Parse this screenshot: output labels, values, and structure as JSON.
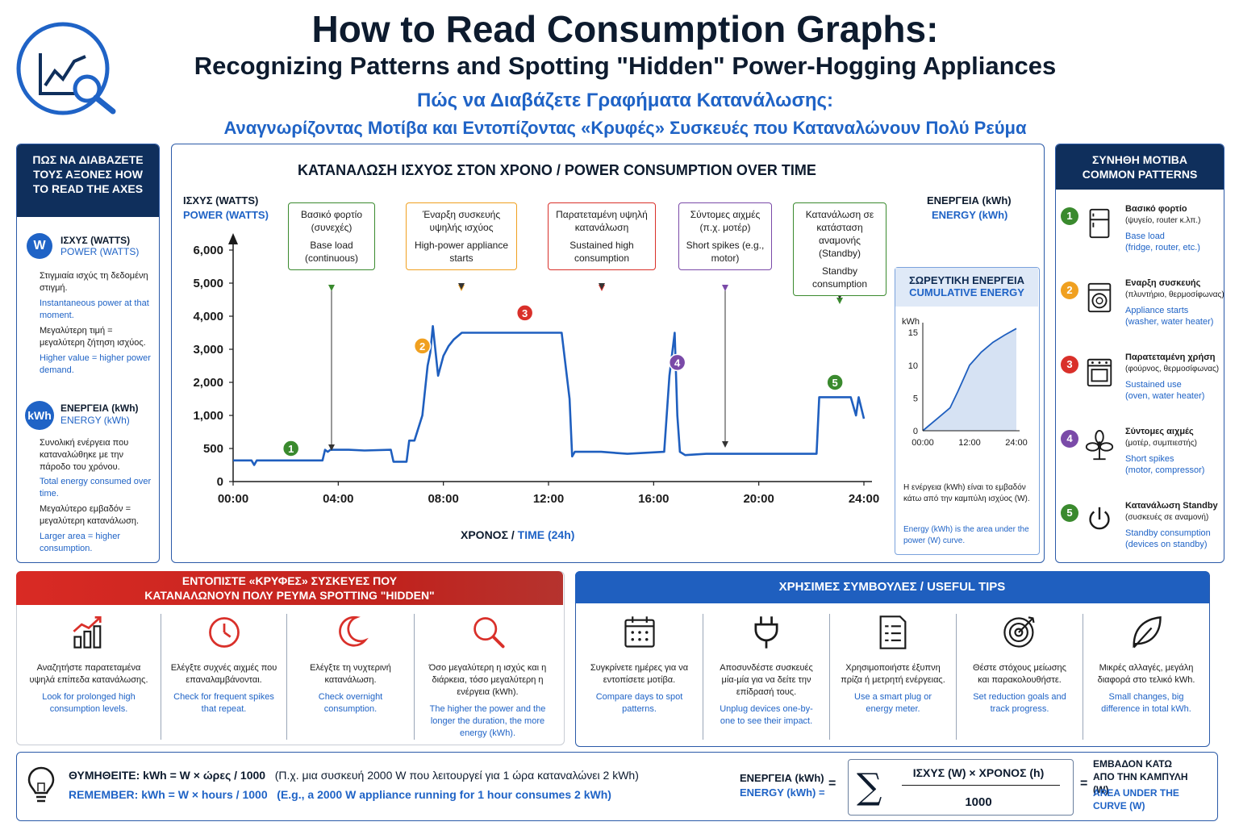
{
  "title": {
    "line1": "How to Read Consumption Graphs:",
    "line2": "Recognizing Patterns and Spotting \"Hidden\" Power-Hogging Appliances",
    "greek1": "Πώς να Διαβάζετε Γραφήματα Κατανάλωσης:",
    "greek2": "Αναγνωρίζοντας Μοτίβα και Εντοπίζοντας «Κρυφές» Συσκευές που Καταναλώνουν Πολύ Ρεύμα"
  },
  "colors": {
    "navy": "#0f2f5c",
    "blue": "#1f63c6",
    "red": "#d9302a",
    "green": "#3a8a2e",
    "orange": "#f0a020",
    "purple": "#7a4aa8"
  },
  "axes_panel": {
    "header": "ΠΩΣ ΝΑ ΔΙΑΒΑΖΕΤΕ ΤΟΥΣ ΑΞΟΝΕΣ HOW TO READ THE AXES",
    "power": {
      "badge": "W",
      "title": "ΙΣΧΥΣ (WATTS)",
      "title_en": "POWER (WATTS)",
      "g1": "Στιγμιαία ισχύς τη δεδομένη στιγμή.",
      "e1": "Instantaneous power at that moment.",
      "g2": "Μεγαλύτερη τιμή = μεγαλύτερη ζήτηση ισχύος.",
      "e2": "Higher value = higher power demand."
    },
    "energy": {
      "badge": "kWh",
      "title": "ΕΝΕΡΓΕΙΑ (kWh)",
      "title_en": "ENERGY (kWh)",
      "g1": "Συνολική ενέργεια που καταναλώθηκε με την πάροδο του χρόνου.",
      "e1": "Total energy consumed over time.",
      "g2": "Μεγαλύτερο εμβαδόν = μεγαλύτερη κατανάλωση.",
      "e2": "Larger area = higher consumption."
    }
  },
  "main_chart": {
    "title": "ΚΑΤΑΝΑΛΩΣΗ ΙΣΧΥΟΣ ΣΤΟΝ ΧΡΟΝΟ / POWER CONSUMPTION OVER TIME",
    "ylabel": "ΙΣΧΥΣ (WATTS)",
    "ylabel_en": "POWER (WATTS)",
    "xlabel": "ΧΡΟΝΟΣ /",
    "xlabel_en": "TIME (24h)",
    "right_label": "ΕΝΕΡΓΕΙΑ (kWh)",
    "right_label_en": "ENERGY (kWh)",
    "callouts": [
      {
        "n": "1",
        "g": "Βασικό φορτίο (συνεχές)",
        "e": "Base load (continuous)",
        "color": "#3a8a2e"
      },
      {
        "n": "2",
        "g": "Έναρξη συσκευής υψηλής ισχύος",
        "e": "High-power appliance starts",
        "color": "#f0a020"
      },
      {
        "n": "3",
        "g": "Παρατεταμένη υψηλή κατανάλωση",
        "e": "Sustained high consumption",
        "color": "#d9302a"
      },
      {
        "n": "4",
        "g": "Σύντομες αιχμές (π.χ. μοτέρ)",
        "e": "Short spikes (e.g., motor)",
        "color": "#7a4aa8"
      },
      {
        "n": "5",
        "g": "Κατανάλωση σε κατάσταση αναμονής (Standby)",
        "e": "Standby consumption",
        "color": "#3a8a2e"
      }
    ]
  },
  "chart_data": [
    {
      "type": "line",
      "title": "ΚΑΤΑΝΑΛΩΣΗ ΙΣΧΥΟΣ ΣΤΟΝ ΧΡΟΝΟ / POWER CONSUMPTION OVER TIME",
      "xlabel": "ΧΡΟΝΟΣ / TIME (24h)",
      "ylabel": "ΙΣΧΥΣ (WATTS) POWER (WATTS)",
      "x_ticks": [
        "00:00",
        "04:00",
        "08:00",
        "12:00",
        "16:00",
        "20:00",
        "24:00"
      ],
      "y_ticks": [
        "0",
        "500",
        "1,000",
        "2,000",
        "3,000",
        "4,000",
        "5,000",
        "6,000"
      ],
      "y_tick_values": [
        0,
        500,
        1000,
        2000,
        3000,
        4000,
        5000,
        6000
      ],
      "xlim": [
        0,
        24
      ],
      "series": [
        {
          "x": [
            0,
            0.7,
            0.8,
            0.9,
            1.0,
            2.5,
            3.4,
            3.5,
            3.6,
            3.7,
            4.2,
            4.4,
            5.0,
            6.0,
            6.1,
            6.6,
            6.7,
            6.9,
            7.2,
            7.4,
            7.5,
            7.6,
            7.8,
            8.0,
            8.2,
            8.4,
            8.7,
            9.0,
            12.0,
            12.5,
            12.8,
            12.9,
            13.0,
            14.0,
            15.0,
            16.4,
            16.6,
            16.8,
            16.9,
            17.0,
            17.2,
            18.0,
            20.0,
            22.2,
            22.3,
            22.6,
            23.0,
            23.5,
            23.7,
            23.8,
            24.0
          ],
          "y": [
            320,
            320,
            250,
            320,
            320,
            320,
            320,
            480,
            450,
            480,
            480,
            480,
            470,
            480,
            300,
            300,
            620,
            620,
            1000,
            2500,
            2900,
            3700,
            2200,
            2800,
            3100,
            3300,
            3500,
            3500,
            3500,
            3500,
            1500,
            380,
            450,
            450,
            420,
            450,
            2200,
            3500,
            1000,
            450,
            400,
            420,
            420,
            420,
            1550,
            1550,
            1550,
            1550,
            1000,
            1550,
            950
          ]
        }
      ]
    },
    {
      "type": "area",
      "title": "ΣΩΡΕΥΤΙΚΗ ΕΝΕΡΓΕΙΑ CUMULATIVE ENERGY",
      "ylabel": "kWh",
      "x_ticks": [
        "00:00",
        "12:00",
        "24:00"
      ],
      "y_ticks": [
        "0",
        "5",
        "10",
        "15"
      ],
      "y_tick_values": [
        0,
        5,
        10,
        15
      ],
      "xlim": [
        0,
        24
      ],
      "ylim": [
        0,
        16
      ],
      "series": [
        {
          "x": [
            0,
            4,
            7,
            9,
            10.5,
            12,
            15,
            18,
            21,
            24
          ],
          "y": [
            0,
            2,
            3.5,
            6,
            8,
            10,
            12,
            13.5,
            14.6,
            15.6
          ]
        }
      ]
    }
  ],
  "cumulative": {
    "title": "ΣΩΡΕΥΤΙΚΗ ΕΝΕΡΓΕΙΑ",
    "title_en": "CUMULATIVE ENERGY",
    "unit": "kWh",
    "note_g": "Η ενέργεια (kWh) είναι το εμβαδόν κάτω από την καμπύλη ισχύος (W).",
    "note_e": "Energy (kWh) is the area under the power (W) curve."
  },
  "patterns": {
    "header": "ΣΥΝΗΘΗ ΜΟΤΙΒΑ COMMON PATTERNS",
    "items": [
      {
        "n": "1",
        "title": "Βασικό φορτίο",
        "sub": "(ψυγείο, router κ.λπ.)",
        "en1": "Base load",
        "en2": "(fridge, router, etc.)",
        "icon": "fridge-icon",
        "color": "#3a8a2e"
      },
      {
        "n": "2",
        "title": "Εναρξη συσκευής",
        "sub": "(πλυντήριο, θερμοσίφωνας)",
        "en1": "Appliance starts",
        "en2": "(washer, water heater)",
        "icon": "washer-icon",
        "color": "#f0a020"
      },
      {
        "n": "3",
        "title": "Παρατεταμένη χρήση",
        "sub": "(φούρνος, θερμοσίφωνας)",
        "en1": "Sustained use",
        "en2": "(oven, water heater)",
        "icon": "oven-icon",
        "color": "#d9302a"
      },
      {
        "n": "4",
        "title": "Σύντομες αιχμές",
        "sub": "(μοτέρ, συμπιεστής)",
        "en1": "Short spikes",
        "en2": "(motor, compressor)",
        "icon": "fan-icon",
        "color": "#7a4aa8"
      },
      {
        "n": "5",
        "title": "Κατανάλωση Standby",
        "sub": "(συσκευές σε αναμονή)",
        "en1": "Standby consumption",
        "en2": "(devices on standby)",
        "icon": "power-icon",
        "color": "#3a8a2e"
      }
    ]
  },
  "spotting": {
    "header": "ΕΝΤΟΠΙΣΤΕ «ΚΡΥΦΕΣ» ΣΥΣΚΕΥΕΣ ΠΟΥ ΚΑΤΑΝΑΛΩΝΟΥΝ ΠΟΛΥ ΡΕΥΜΑ SPOTTING \"HIDDEN\" POWER-HOGGING APPLIANCES",
    "items": [
      {
        "g": "Αναζητήστε παρατεταμένα υψηλά επίπεδα κατανάλωσης.",
        "e": "Look for prolonged high consumption levels.",
        "icon": "bar-chart-icon"
      },
      {
        "g": "Ελέγξτε συχνές αιχμές που επαναλαμβάνονται.",
        "e": "Check for frequent spikes that repeat.",
        "icon": "clock-icon"
      },
      {
        "g": "Ελέγξτε τη νυχτερινή κατανάλωση.",
        "e": "Check overnight consumption.",
        "icon": "moon-icon"
      },
      {
        "g": "Όσο μεγαλύτερη η ισχύς και η διάρκεια, τόσο μεγαλύτερη η ενέργεια (kWh).",
        "e": "The higher the power and the longer the duration, the more energy (kWh).",
        "icon": "magnifier-icon"
      }
    ]
  },
  "tips": {
    "header": "ΧΡΗΣΙΜΕΣ ΣΥΜΒΟΥΛΕΣ / USEFUL TIPS",
    "items": [
      {
        "g": "Συγκρίνετε ημέρες για να εντοπίσετε μοτίβα.",
        "e": "Compare days to spot patterns.",
        "icon": "calendar-icon"
      },
      {
        "g": "Αποσυνδέστε συσκευές μία-μία για να δείτε την επίδρασή τους.",
        "e": "Unplug devices one-by-one to see their impact.",
        "icon": "plug-icon"
      },
      {
        "g": "Χρησιμοποιήστε έξυπνη πρίζα ή μετρητή ενέργειας.",
        "e": "Use a smart plug or energy meter.",
        "icon": "list-icon"
      },
      {
        "g": "Θέστε στόχους μείωσης και παρακολουθήστε.",
        "e": "Set reduction goals and track progress.",
        "icon": "target-icon"
      },
      {
        "g": "Μικρές αλλαγές, μεγάλη διαφορά στο τελικό kWh.",
        "e": "Small changes, big difference in total kWh.",
        "icon": "leaf-icon"
      }
    ]
  },
  "footer": {
    "remember_g": "ΘΥΜΗΘΕΙΤΕ: kWh = W × ώρες / 1000",
    "example_g": "(Π.χ. μια συσκευή 2000 W που λειτουργεί για 1 ώρα καταναλώνει 2 kWh)",
    "remember_e": "REMEMBER: kWh = W × hours / 1000",
    "example_e": "(E.g., a 2000 W appliance running for 1 hour consumes 2 kWh)",
    "energy_label": "ΕΝΕΡΓΕΙΑ (kWh)",
    "energy_label_en": "ENERGY (kWh) =",
    "eq1": "=",
    "sigma": "∑",
    "numerator": "ΙΣΧΥΣ (W) × ΧΡΟΝΟΣ (h)",
    "denominator": "1000",
    "eq2": "=",
    "area_g": "ΕΜΒΑΔΟΝ ΚΑΤΩ ΑΠΟ ΤΗΝ ΚΑΜΠΥΛΗ (W)",
    "area_e": "AREA UNDER THE CURVE (W)"
  }
}
